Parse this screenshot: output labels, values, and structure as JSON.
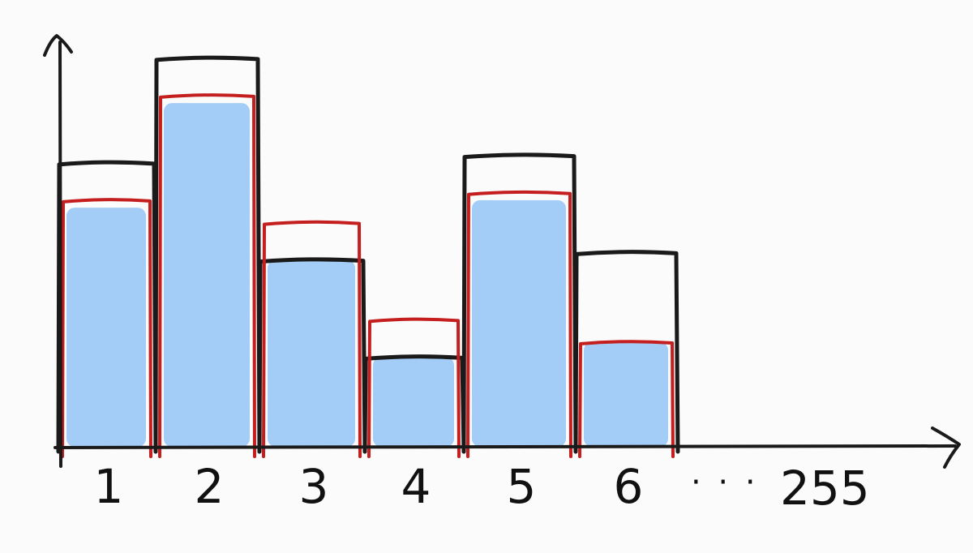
{
  "chart_data": {
    "type": "bar",
    "categories": [
      "1",
      "2",
      "3",
      "4",
      "5",
      "6"
    ],
    "ellipsis": "· · ·",
    "last_category": "255",
    "series": [
      {
        "role": "black-outline",
        "values": [
          3.8,
          5.2,
          2.5,
          1.2,
          3.9,
          2.6
        ]
      },
      {
        "role": "red-outline",
        "values": [
          3.3,
          4.7,
          3.0,
          1.7,
          3.4,
          1.4
        ]
      },
      {
        "role": "blue-fill",
        "values": [
          3.2,
          4.6,
          2.5,
          1.2,
          3.3,
          1.4
        ]
      }
    ],
    "ylim": [
      0,
      5.6
    ],
    "title": "",
    "xlabel": "",
    "ylabel": "",
    "colors": {
      "blue": "#a3cdf6",
      "red": "#c41e1e",
      "black": "#1a1a1a"
    }
  }
}
